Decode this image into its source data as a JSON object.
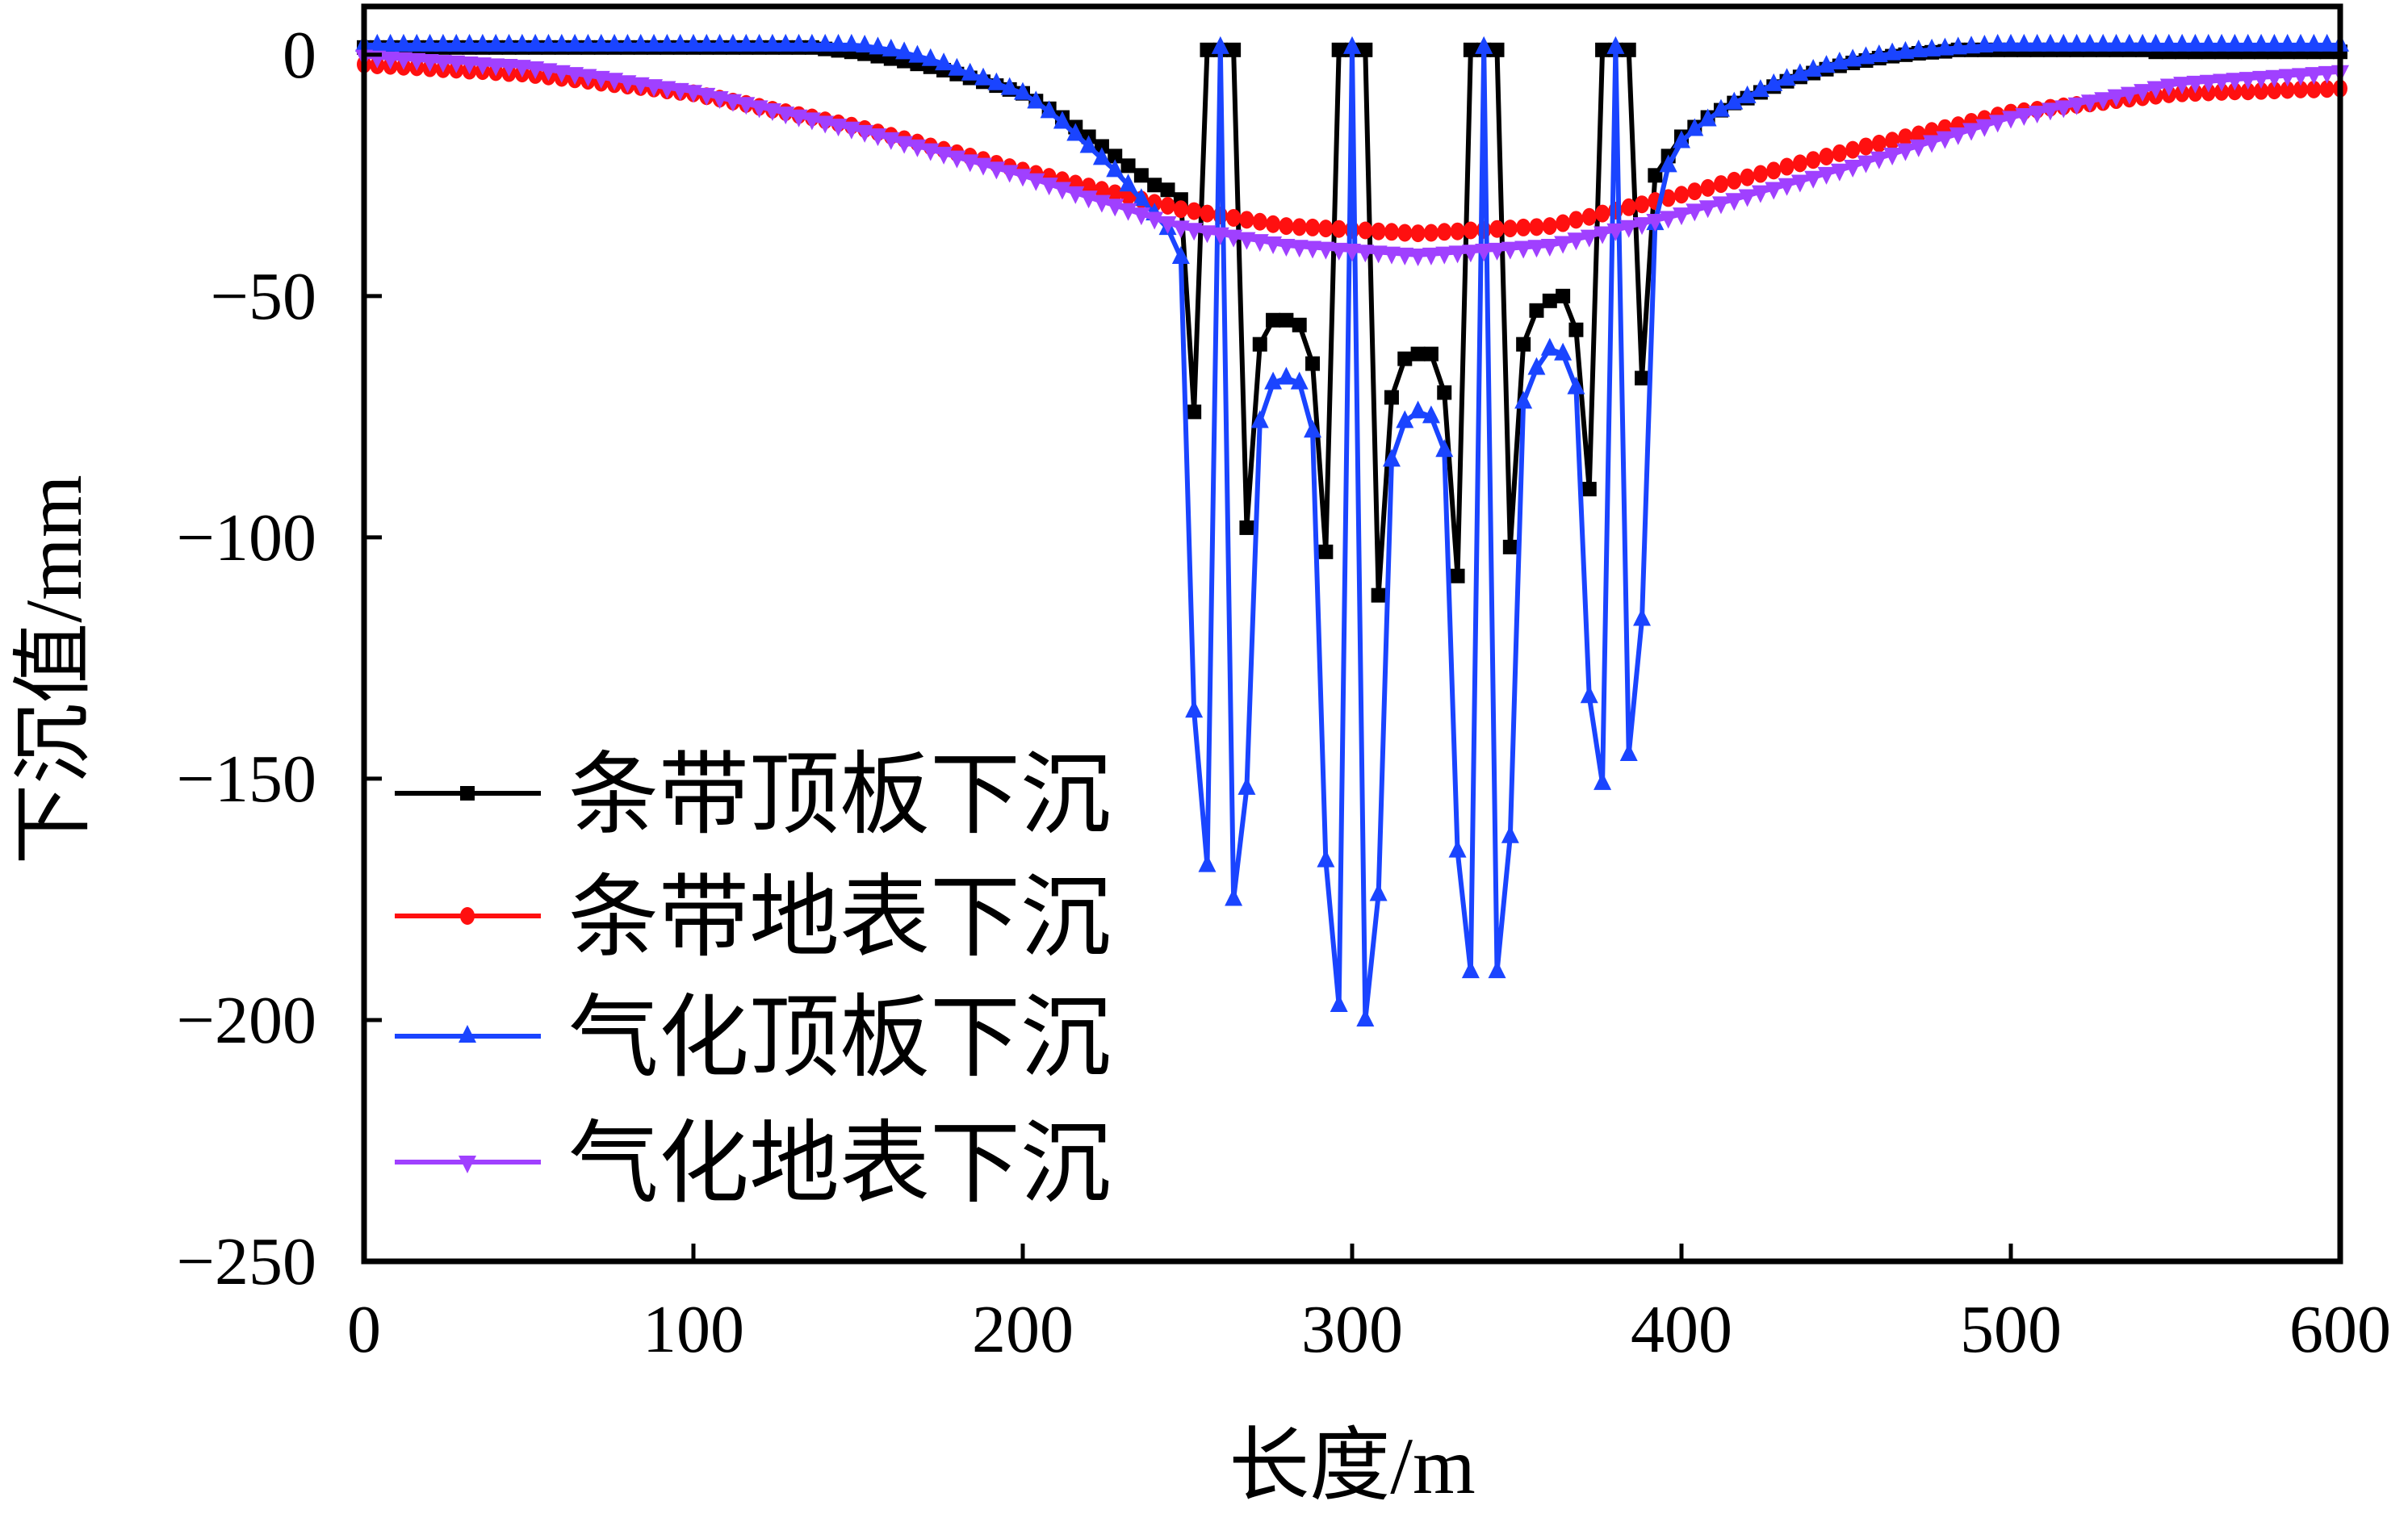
{
  "chart_data": {
    "type": "line",
    "title": "",
    "xlabel": "长度/m",
    "ylabel": "下沉值/mm",
    "xlim": [
      0,
      600
    ],
    "ylim": [
      -250,
      10
    ],
    "x_start": 0,
    "x_step": 4,
    "x_ticks": [
      0,
      100,
      200,
      300,
      400,
      500,
      600
    ],
    "x_tick_labels": [
      "0",
      "100",
      "200",
      "300",
      "400",
      "500",
      "600"
    ],
    "y_ticks": [
      0,
      -50,
      -100,
      -150,
      -200,
      -250
    ],
    "y_tick_labels": [
      "0",
      "−50",
      "−100",
      "−150",
      "−200",
      "−250"
    ],
    "grid": false,
    "legend_position": "lower-left",
    "series": [
      {
        "name": "条带顶板下沉",
        "color": "#000000",
        "marker": "square",
        "values": [
          1.5,
          1.5,
          1.5,
          1.5,
          1.5,
          1.5,
          1.5,
          1.5,
          1.5,
          1.5,
          1.5,
          1.5,
          1.5,
          1.5,
          1.5,
          1.5,
          1.5,
          1.5,
          1.5,
          1.5,
          1.5,
          1.5,
          1.5,
          1.5,
          1.5,
          1.5,
          1.5,
          1.5,
          1.5,
          1.5,
          1.5,
          1.5,
          1.5,
          1.5,
          1.5,
          1.2,
          0.9,
          0.6,
          0.2,
          -0.3,
          -0.8,
          -1.3,
          -1.9,
          -2.5,
          -3.2,
          -4.0,
          -4.8,
          -5.6,
          -6.4,
          -7.2,
          -8.0,
          -9.6,
          -11.2,
          -13.0,
          -15.0,
          -17.0,
          -19.0,
          -21.0,
          -23.0,
          -25.0,
          -27.0,
          -28.0,
          -30.0,
          -74,
          1,
          1,
          1,
          -98,
          -60,
          -55,
          -55,
          -56,
          -64,
          -103,
          1,
          1,
          1,
          -112,
          -71,
          -63,
          -62,
          -62,
          -70,
          -108,
          1,
          1,
          1,
          -102,
          -60,
          -53,
          -51,
          -50,
          -57,
          -90,
          1,
          1,
          1,
          -67,
          -25,
          -21,
          -17,
          -15,
          -13,
          -11.5,
          -10,
          -9,
          -7.8,
          -6.6,
          -5.5,
          -4.6,
          -3.8,
          -3,
          -2.3,
          -1.7,
          -1.2,
          -0.7,
          -0.3,
          0,
          0.3,
          0.5,
          0.7,
          1,
          1,
          1,
          1,
          1,
          1,
          1,
          1,
          1,
          1,
          1,
          1,
          1,
          1,
          1,
          0.6,
          0.6,
          0.6,
          0.6,
          0.6,
          0.6,
          0.6,
          0.6,
          0.6,
          0.6,
          0.6,
          0.6,
          0.6,
          0.6,
          0.6
        ]
      },
      {
        "name": "条带地表下沉",
        "color": "#ff1010",
        "marker": "circle",
        "values": [
          -2.0,
          -2.2,
          -2.3,
          -2.5,
          -2.6,
          -2.8,
          -3.0,
          -3.1,
          -3.3,
          -3.4,
          -3.6,
          -3.8,
          -3.9,
          -4.2,
          -4.5,
          -4.8,
          -5.1,
          -5.4,
          -5.8,
          -6.1,
          -6.4,
          -6.7,
          -7.0,
          -7.4,
          -7.7,
          -8.0,
          -8.6,
          -9.1,
          -9.7,
          -10.2,
          -10.8,
          -11.4,
          -11.9,
          -12.5,
          -13.0,
          -13.6,
          -14.2,
          -14.7,
          -15.4,
          -16.1,
          -16.8,
          -17.5,
          -18.2,
          -19.0,
          -19.7,
          -20.4,
          -21.1,
          -21.8,
          -22.6,
          -23.3,
          -24.0,
          -24.7,
          -25.3,
          -26.0,
          -26.7,
          -27.3,
          -28.0,
          -28.7,
          -29.3,
          -30.0,
          -30.7,
          -31.3,
          -32.0,
          -32.4,
          -32.9,
          -33.3,
          -33.8,
          -34.2,
          -34.6,
          -35.1,
          -35.5,
          -35.7,
          -35.8,
          -36.0,
          -36.1,
          -36.3,
          -36.4,
          -36.6,
          -36.7,
          -36.9,
          -37.0,
          -36.9,
          -36.7,
          -36.6,
          -36.4,
          -36.3,
          -36.1,
          -36.0,
          -35.8,
          -35.7,
          -35.5,
          -34.9,
          -34.2,
          -33.6,
          -32.9,
          -32.3,
          -31.6,
          -31.0,
          -30.3,
          -29.7,
          -29.0,
          -28.3,
          -27.6,
          -26.8,
          -26.1,
          -25.4,
          -24.7,
          -24.0,
          -23.2,
          -22.5,
          -21.8,
          -21.1,
          -20.4,
          -19.7,
          -19.0,
          -18.4,
          -17.8,
          -17.1,
          -16.5,
          -15.8,
          -15.2,
          -14.6,
          -13.9,
          -13.3,
          -12.6,
          -12.0,
          -11.7,
          -11.4,
          -11.0,
          -10.7,
          -10.4,
          -10.1,
          -9.8,
          -9.4,
          -9.1,
          -8.8,
          -8.5,
          -8.2,
          -8.0,
          -7.9,
          -7.8,
          -7.7,
          -7.6,
          -7.6,
          -7.5,
          -7.4,
          -7.3,
          -7.2,
          -7.2,
          -7.1,
          -7.0
        ]
      },
      {
        "name": "气化顶板下沉",
        "color": "#1a44ff",
        "marker": "triangle-up",
        "values": [
          2,
          2,
          2,
          2,
          2,
          2,
          2,
          2,
          2,
          2,
          2,
          2,
          2,
          2,
          2,
          2,
          2,
          2,
          2,
          2,
          2,
          2,
          2,
          2,
          2,
          2,
          2,
          2,
          2,
          2,
          2,
          2,
          2,
          2,
          2,
          2,
          2,
          2,
          1.8,
          1.4,
          1.0,
          0.4,
          -0.3,
          -1.0,
          -1.9,
          -3.0,
          -4.0,
          -5.0,
          -6.0,
          -7.0,
          -8.0,
          -9.8,
          -11.8,
          -14,
          -16.5,
          -19,
          -21.5,
          -24,
          -27,
          -30,
          -33,
          -36,
          -42,
          -136,
          -168,
          1.5,
          -175,
          -152,
          -76,
          -68,
          -67,
          -68,
          -78,
          -167,
          -197,
          1.5,
          -200,
          -174,
          -84,
          -76,
          -74,
          -75,
          -82,
          -165,
          -190,
          1.5,
          -190,
          -162,
          -72,
          -65,
          -61,
          -62,
          -69,
          -133,
          -151,
          1.5,
          -145,
          -117,
          -35,
          -23,
          -18,
          -15.5,
          -13.5,
          -11.5,
          -10,
          -8.7,
          -7.4,
          -6.2,
          -5.1,
          -4.1,
          -3.2,
          -2.4,
          -1.7,
          -1.1,
          -0.6,
          -0.2,
          0.2,
          0.5,
          0.8,
          1.0,
          1.2,
          1.4,
          1.6,
          1.8,
          2,
          2,
          2,
          2,
          2,
          2,
          2,
          2,
          2,
          2,
          2,
          2,
          2,
          2,
          2,
          2,
          2,
          2,
          2,
          2,
          2,
          2,
          2,
          2,
          2,
          2,
          2
        ]
      },
      {
        "name": "气化地表下沉",
        "color": "#a040ff",
        "marker": "triangle-down",
        "values": [
          -0.3,
          -0.5,
          -0.7,
          -0.8,
          -1.0,
          -1.2,
          -1.4,
          -1.5,
          -1.7,
          -1.9,
          -2.1,
          -2.2,
          -2.4,
          -2.7,
          -3.1,
          -3.5,
          -3.9,
          -4.3,
          -4.7,
          -5.1,
          -5.6,
          -6.0,
          -6.4,
          -6.8,
          -7.2,
          -7.6,
          -8.2,
          -8.9,
          -9.5,
          -10.1,
          -10.8,
          -11.4,
          -12.1,
          -12.7,
          -13.3,
          -14.0,
          -14.6,
          -15.2,
          -15.9,
          -16.6,
          -17.4,
          -18.2,
          -18.9,
          -19.7,
          -20.4,
          -21.2,
          -22.0,
          -22.7,
          -23.5,
          -24.2,
          -25.0,
          -25.9,
          -26.8,
          -27.7,
          -28.6,
          -29.5,
          -30.4,
          -31.2,
          -32.1,
          -33.0,
          -33.9,
          -34.8,
          -35.7,
          -36.2,
          -36.7,
          -37.1,
          -37.6,
          -38.1,
          -38.5,
          -39.0,
          -39.5,
          -39.7,
          -39.9,
          -40.1,
          -40.3,
          -40.5,
          -40.7,
          -40.9,
          -41.1,
          -41.3,
          -41.5,
          -41.3,
          -41.1,
          -40.9,
          -40.7,
          -40.5,
          -40.3,
          -40.1,
          -39.9,
          -39.7,
          -39.5,
          -38.9,
          -38.2,
          -37.6,
          -36.9,
          -36.3,
          -35.6,
          -35.0,
          -34.3,
          -33.7,
          -33.0,
          -32.2,
          -31.5,
          -30.7,
          -30.0,
          -29.2,
          -28.4,
          -27.7,
          -26.9,
          -26.2,
          -25.4,
          -24.6,
          -23.9,
          -23.1,
          -22.2,
          -21.4,
          -20.6,
          -19.7,
          -18.9,
          -18.0,
          -17.2,
          -16.4,
          -15.5,
          -14.7,
          -13.8,
          -13.0,
          -12.4,
          -11.9,
          -11.3,
          -10.8,
          -10.2,
          -9.6,
          -9.1,
          -8.5,
          -8.0,
          -7.4,
          -6.8,
          -6.3,
          -5.9,
          -5.7,
          -5.5,
          -5.3,
          -5.1,
          -4.9,
          -4.7,
          -4.5,
          -4.3,
          -4.1,
          -3.9,
          -3.7,
          -3.5
        ]
      }
    ]
  }
}
